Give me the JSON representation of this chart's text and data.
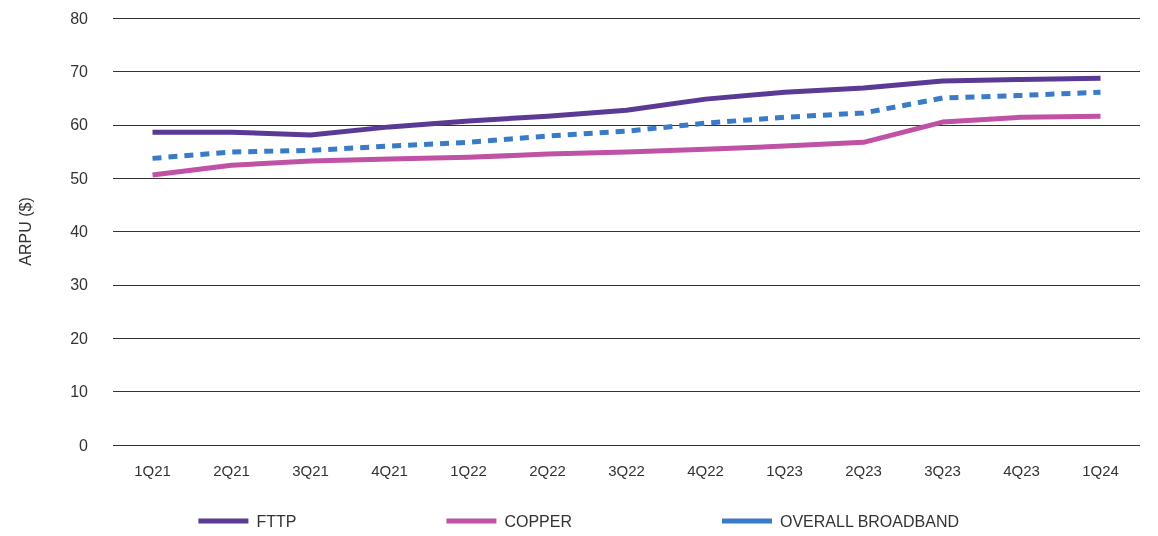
{
  "chart_data": {
    "type": "line",
    "ylabel": "ARPU ($)",
    "categories": [
      "1Q21",
      "2Q21",
      "3Q21",
      "4Q21",
      "1Q22",
      "2Q22",
      "3Q22",
      "4Q22",
      "1Q23",
      "2Q23",
      "3Q23",
      "4Q23",
      "1Q24"
    ],
    "series": [
      {
        "name": "FTTP",
        "color": "#5b3a96",
        "values": [
          58.6,
          58.6,
          58.1,
          59.6,
          60.7,
          61.6,
          62.7,
          64.8,
          66.1,
          66.9,
          68.2,
          68.5,
          68.7
        ]
      },
      {
        "name": "COPPER",
        "color": "#c052a6",
        "values": [
          50.6,
          52.4,
          53.2,
          53.6,
          53.9,
          54.5,
          54.9,
          55.4,
          56.0,
          56.7,
          60.5,
          61.4,
          61.6
        ]
      },
      {
        "name": "OVERALL BROADBAND",
        "color": "#3a7bc8",
        "line_style": "dashed",
        "values": [
          53.7,
          54.9,
          55.2,
          56.0,
          56.7,
          57.9,
          58.8,
          60.3,
          61.4,
          62.2,
          65.0,
          65.5,
          66.1
        ]
      }
    ],
    "ylim": [
      0,
      80
    ],
    "yticks": [
      0,
      10,
      20,
      30,
      40,
      50,
      60,
      70,
      80
    ],
    "grid": "y",
    "legend": "bottom",
    "marker": "none"
  }
}
